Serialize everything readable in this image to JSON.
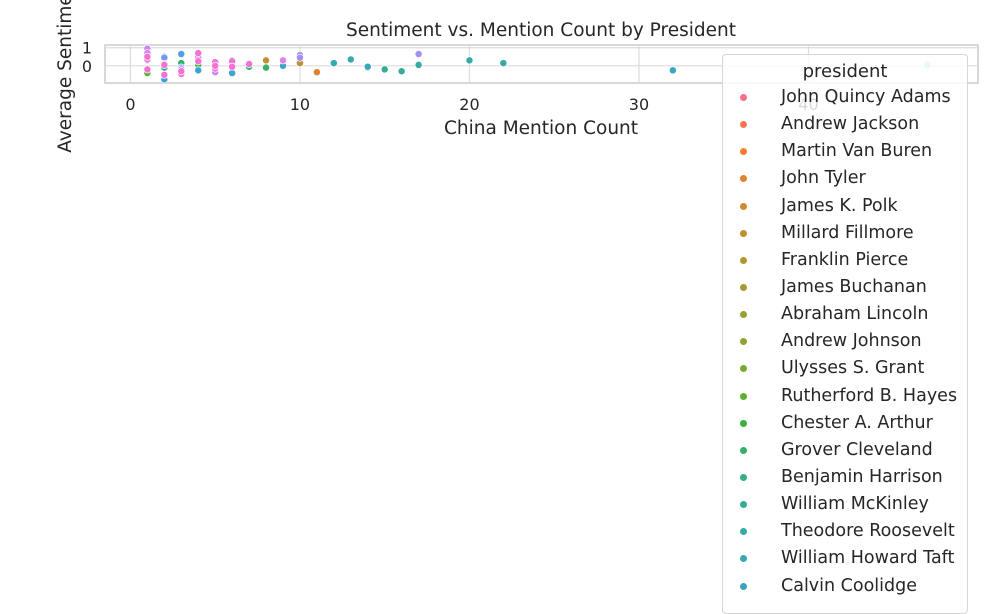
{
  "chart_data": {
    "type": "scatter",
    "title": "Sentiment vs. Mention Count by President",
    "xlabel": "China Mention Count",
    "ylabel": "Average Sentiment",
    "xlim": [
      -1.5,
      50
    ],
    "ylim": [
      -0.95,
      1.15
    ],
    "xticks": [
      0,
      10,
      20,
      30,
      40
    ],
    "yticks": [
      0,
      1
    ],
    "grid": true,
    "legend": {
      "title": "president",
      "placement": "right"
    },
    "series": [
      {
        "name": "John Quincy Adams",
        "color": "#f77189",
        "points": []
      },
      {
        "name": "Andrew Jackson",
        "color": "#f7754f",
        "points": []
      },
      {
        "name": "Martin Van Buren",
        "color": "#f27d30",
        "points": []
      },
      {
        "name": "John Tyler",
        "color": "#e08031",
        "points": [
          [
            11,
            -0.35
          ]
        ]
      },
      {
        "name": "James K. Polk",
        "color": "#cf8a31",
        "points": []
      },
      {
        "name": "Millard Fillmore",
        "color": "#c08f31",
        "points": [
          [
            8,
            0.3
          ],
          [
            10,
            0.15
          ]
        ]
      },
      {
        "name": "Franklin Pierce",
        "color": "#b39631",
        "points": []
      },
      {
        "name": "James Buchanan",
        "color": "#a69a31",
        "points": []
      },
      {
        "name": "Abraham Lincoln",
        "color": "#99a031",
        "points": [
          [
            7,
            0.05
          ]
        ]
      },
      {
        "name": "Andrew Johnson",
        "color": "#8ca431",
        "points": []
      },
      {
        "name": "Ulysses S. Grant",
        "color": "#7aa831",
        "points": [
          [
            3,
            0.1
          ]
        ]
      },
      {
        "name": "Rutherford B. Hayes",
        "color": "#5fae31",
        "points": [
          [
            1,
            -0.4
          ]
        ]
      },
      {
        "name": "Chester A. Arthur",
        "color": "#36b337",
        "points": [
          [
            4,
            0.05
          ]
        ]
      },
      {
        "name": "Grover Cleveland",
        "color": "#33b069",
        "points": [
          [
            7,
            -0.05
          ],
          [
            8,
            -0.1
          ],
          [
            3,
            0.15
          ]
        ]
      },
      {
        "name": "Benjamin Harrison",
        "color": "#34ae84",
        "points": [
          [
            2,
            -0.1
          ],
          [
            6,
            0.3
          ]
        ]
      },
      {
        "name": "William McKinley",
        "color": "#35ac96",
        "points": [
          [
            14,
            -0.1
          ],
          [
            15,
            -0.2
          ],
          [
            16,
            -0.3
          ]
        ]
      },
      {
        "name": "Theodore Roosevelt",
        "color": "#36aba3",
        "points": [
          [
            17,
            0.05
          ],
          [
            20,
            0.3
          ],
          [
            22,
            0.15
          ]
        ]
      },
      {
        "name": "William Howard Taft",
        "color": "#37a9af",
        "points": [
          [
            12,
            0.15
          ],
          [
            13,
            0.35
          ]
        ]
      },
      {
        "name": "Calvin Coolidge",
        "color": "#38a7ba",
        "points": [
          [
            14,
            -0.05
          ],
          [
            32,
            -0.25
          ]
        ]
      },
      {
        "name": "",
        "color": "#39a5c7",
        "points": [
          [
            5,
            0.0
          ],
          [
            9,
            0.0
          ]
        ]
      },
      {
        "name": "",
        "color": "#3ba3d5",
        "points": [
          [
            6,
            -0.4
          ],
          [
            2,
            -0.75
          ],
          [
            4,
            -0.25
          ]
        ]
      },
      {
        "name": "",
        "color": "#4f9ee9",
        "points": [
          [
            3,
            0.65
          ],
          [
            2,
            0.5
          ],
          [
            1,
            0.3
          ],
          [
            6,
            0.1
          ]
        ]
      },
      {
        "name": "",
        "color": "#7a96f3",
        "points": [
          [
            1,
            0.55
          ],
          [
            2,
            0.45
          ],
          [
            3,
            -0.1
          ]
        ]
      },
      {
        "name": "",
        "color": "#a68ef5",
        "points": [
          [
            10,
            0.6
          ],
          [
            17,
            0.65
          ],
          [
            10,
            0.45
          ],
          [
            1,
            0.85
          ]
        ]
      },
      {
        "name": "",
        "color": "#c986f3",
        "points": [
          [
            1,
            0.95
          ],
          [
            3,
            -0.2
          ],
          [
            5,
            -0.35
          ]
        ]
      },
      {
        "name": "",
        "color": "#e27eea",
        "points": [
          [
            2,
            0.1
          ],
          [
            4,
            0.45
          ],
          [
            6,
            0.0
          ],
          [
            9,
            0.3
          ],
          [
            1,
            0.7
          ]
        ]
      },
      {
        "name": "",
        "color": "#f472d5",
        "points": [
          [
            4,
            0.7
          ],
          [
            1,
            0.35
          ],
          [
            5,
            0.2
          ],
          [
            6,
            0.25
          ],
          [
            2,
            -0.5
          ],
          [
            3,
            -0.45
          ],
          [
            5,
            -0.15
          ],
          [
            1,
            -0.2
          ],
          [
            6,
            -0.05
          ],
          [
            7,
            0.1
          ],
          [
            2,
            0.05
          ],
          [
            4,
            0.25
          ],
          [
            3,
            -0.3
          ],
          [
            1,
            0.5
          ],
          [
            5,
            0.0
          ]
        ]
      },
      {
        "name": "",
        "color": "#70e8c4",
        "points": [
          [
            47,
            0.05
          ]
        ]
      }
    ]
  }
}
